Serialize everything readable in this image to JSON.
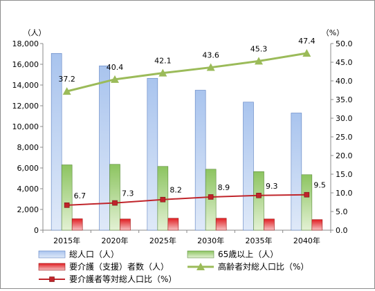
{
  "chart_data": {
    "type": "bar",
    "categories": [
      "2015年",
      "2020年",
      "2025年",
      "2030年",
      "2035年",
      "2040年"
    ],
    "y_axis_left": {
      "unit_label": "（人）",
      "min": 0,
      "max": 18000,
      "step": 2000,
      "tick_labels": [
        "0",
        "2,000",
        "4,000",
        "6,000",
        "8,000",
        "10,000",
        "12,000",
        "14,000",
        "16,000",
        "18,000"
      ]
    },
    "y_axis_right": {
      "unit_label": "（%）",
      "min": 0,
      "max": 50,
      "step": 5,
      "tick_labels": [
        "0.0",
        "5.0",
        "10.0",
        "15.0",
        "20.0",
        "25.0",
        "30.0",
        "35.0",
        "40.0",
        "45.0",
        "50.0"
      ]
    },
    "grid": false,
    "legend_position": "bottom",
    "series": [
      {
        "name": "総人口（人）",
        "type": "bar",
        "axis": "left",
        "color": "#8eb0e4",
        "values": [
          17050,
          15850,
          14650,
          13500,
          12350,
          11300
        ]
      },
      {
        "name": "65歳以上（人）",
        "type": "bar",
        "axis": "left",
        "color": "#8cc460",
        "values": [
          6300,
          6350,
          6150,
          5880,
          5650,
          5350
        ]
      },
      {
        "name": "要介護（支援）者数（人）",
        "type": "bar",
        "axis": "left",
        "color": "#e6262a",
        "values": [
          1100,
          1080,
          1150,
          1150,
          1080,
          1020
        ]
      },
      {
        "name": "高齢者対総人口比（%）",
        "type": "line",
        "axis": "right",
        "color": "#9bbb59",
        "marker": "triangle",
        "values": [
          37.2,
          40.4,
          42.1,
          43.6,
          45.3,
          47.4
        ],
        "labels": [
          "37.2",
          "40.4",
          "42.1",
          "43.6",
          "45.3",
          "47.4"
        ]
      },
      {
        "name": "要介護者等対総人口比（%）",
        "type": "line",
        "axis": "right",
        "color": "#c0242a",
        "marker": "square",
        "values": [
          6.7,
          7.3,
          8.2,
          8.9,
          9.3,
          9.5
        ],
        "labels": [
          "6.7",
          "7.3",
          "8.2",
          "8.9",
          "9.3",
          "9.5"
        ]
      }
    ]
  }
}
